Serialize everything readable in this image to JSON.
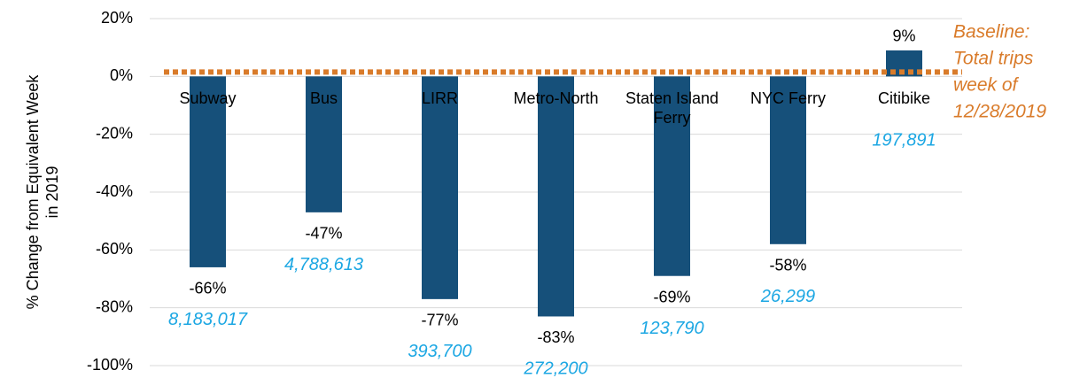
{
  "chart_data": {
    "type": "bar",
    "y_axis_label": [
      "% Change from Equivalent Week",
      "in 2019"
    ],
    "categories": [
      "Subway",
      "Bus",
      "LIRR",
      "Metro-North",
      "Staten Island Ferry",
      "NYC Ferry",
      "Citibike"
    ],
    "values": [
      -66,
      -47,
      -77,
      -83,
      -69,
      -58,
      9
    ],
    "value_labels": [
      "-66%",
      "-47%",
      "-77%",
      "-83%",
      "-69%",
      "-58%",
      "9%"
    ],
    "annotations": [
      "8,183,017",
      "4,788,613",
      "393,700",
      "272,200",
      "123,790",
      "26,299",
      "197,891"
    ],
    "annotation_color": "#1ca7e3",
    "color": "#16507a",
    "baseline": 0,
    "baseline_color": "#d97b2a",
    "baseline_label": [
      "Baseline:",
      "Total trips",
      "week of",
      "12/28/2019"
    ],
    "ylim": [
      -100,
      20
    ],
    "yticks": [
      {
        "value": 20,
        "label": "20%"
      },
      {
        "value": 0,
        "label": "0%"
      },
      {
        "value": -20,
        "label": "-20%"
      },
      {
        "value": -40,
        "label": "-40%"
      },
      {
        "value": -60,
        "label": "-60%"
      },
      {
        "value": -80,
        "label": "-80%"
      },
      {
        "value": -100,
        "label": "-100%"
      }
    ],
    "grid": true
  }
}
